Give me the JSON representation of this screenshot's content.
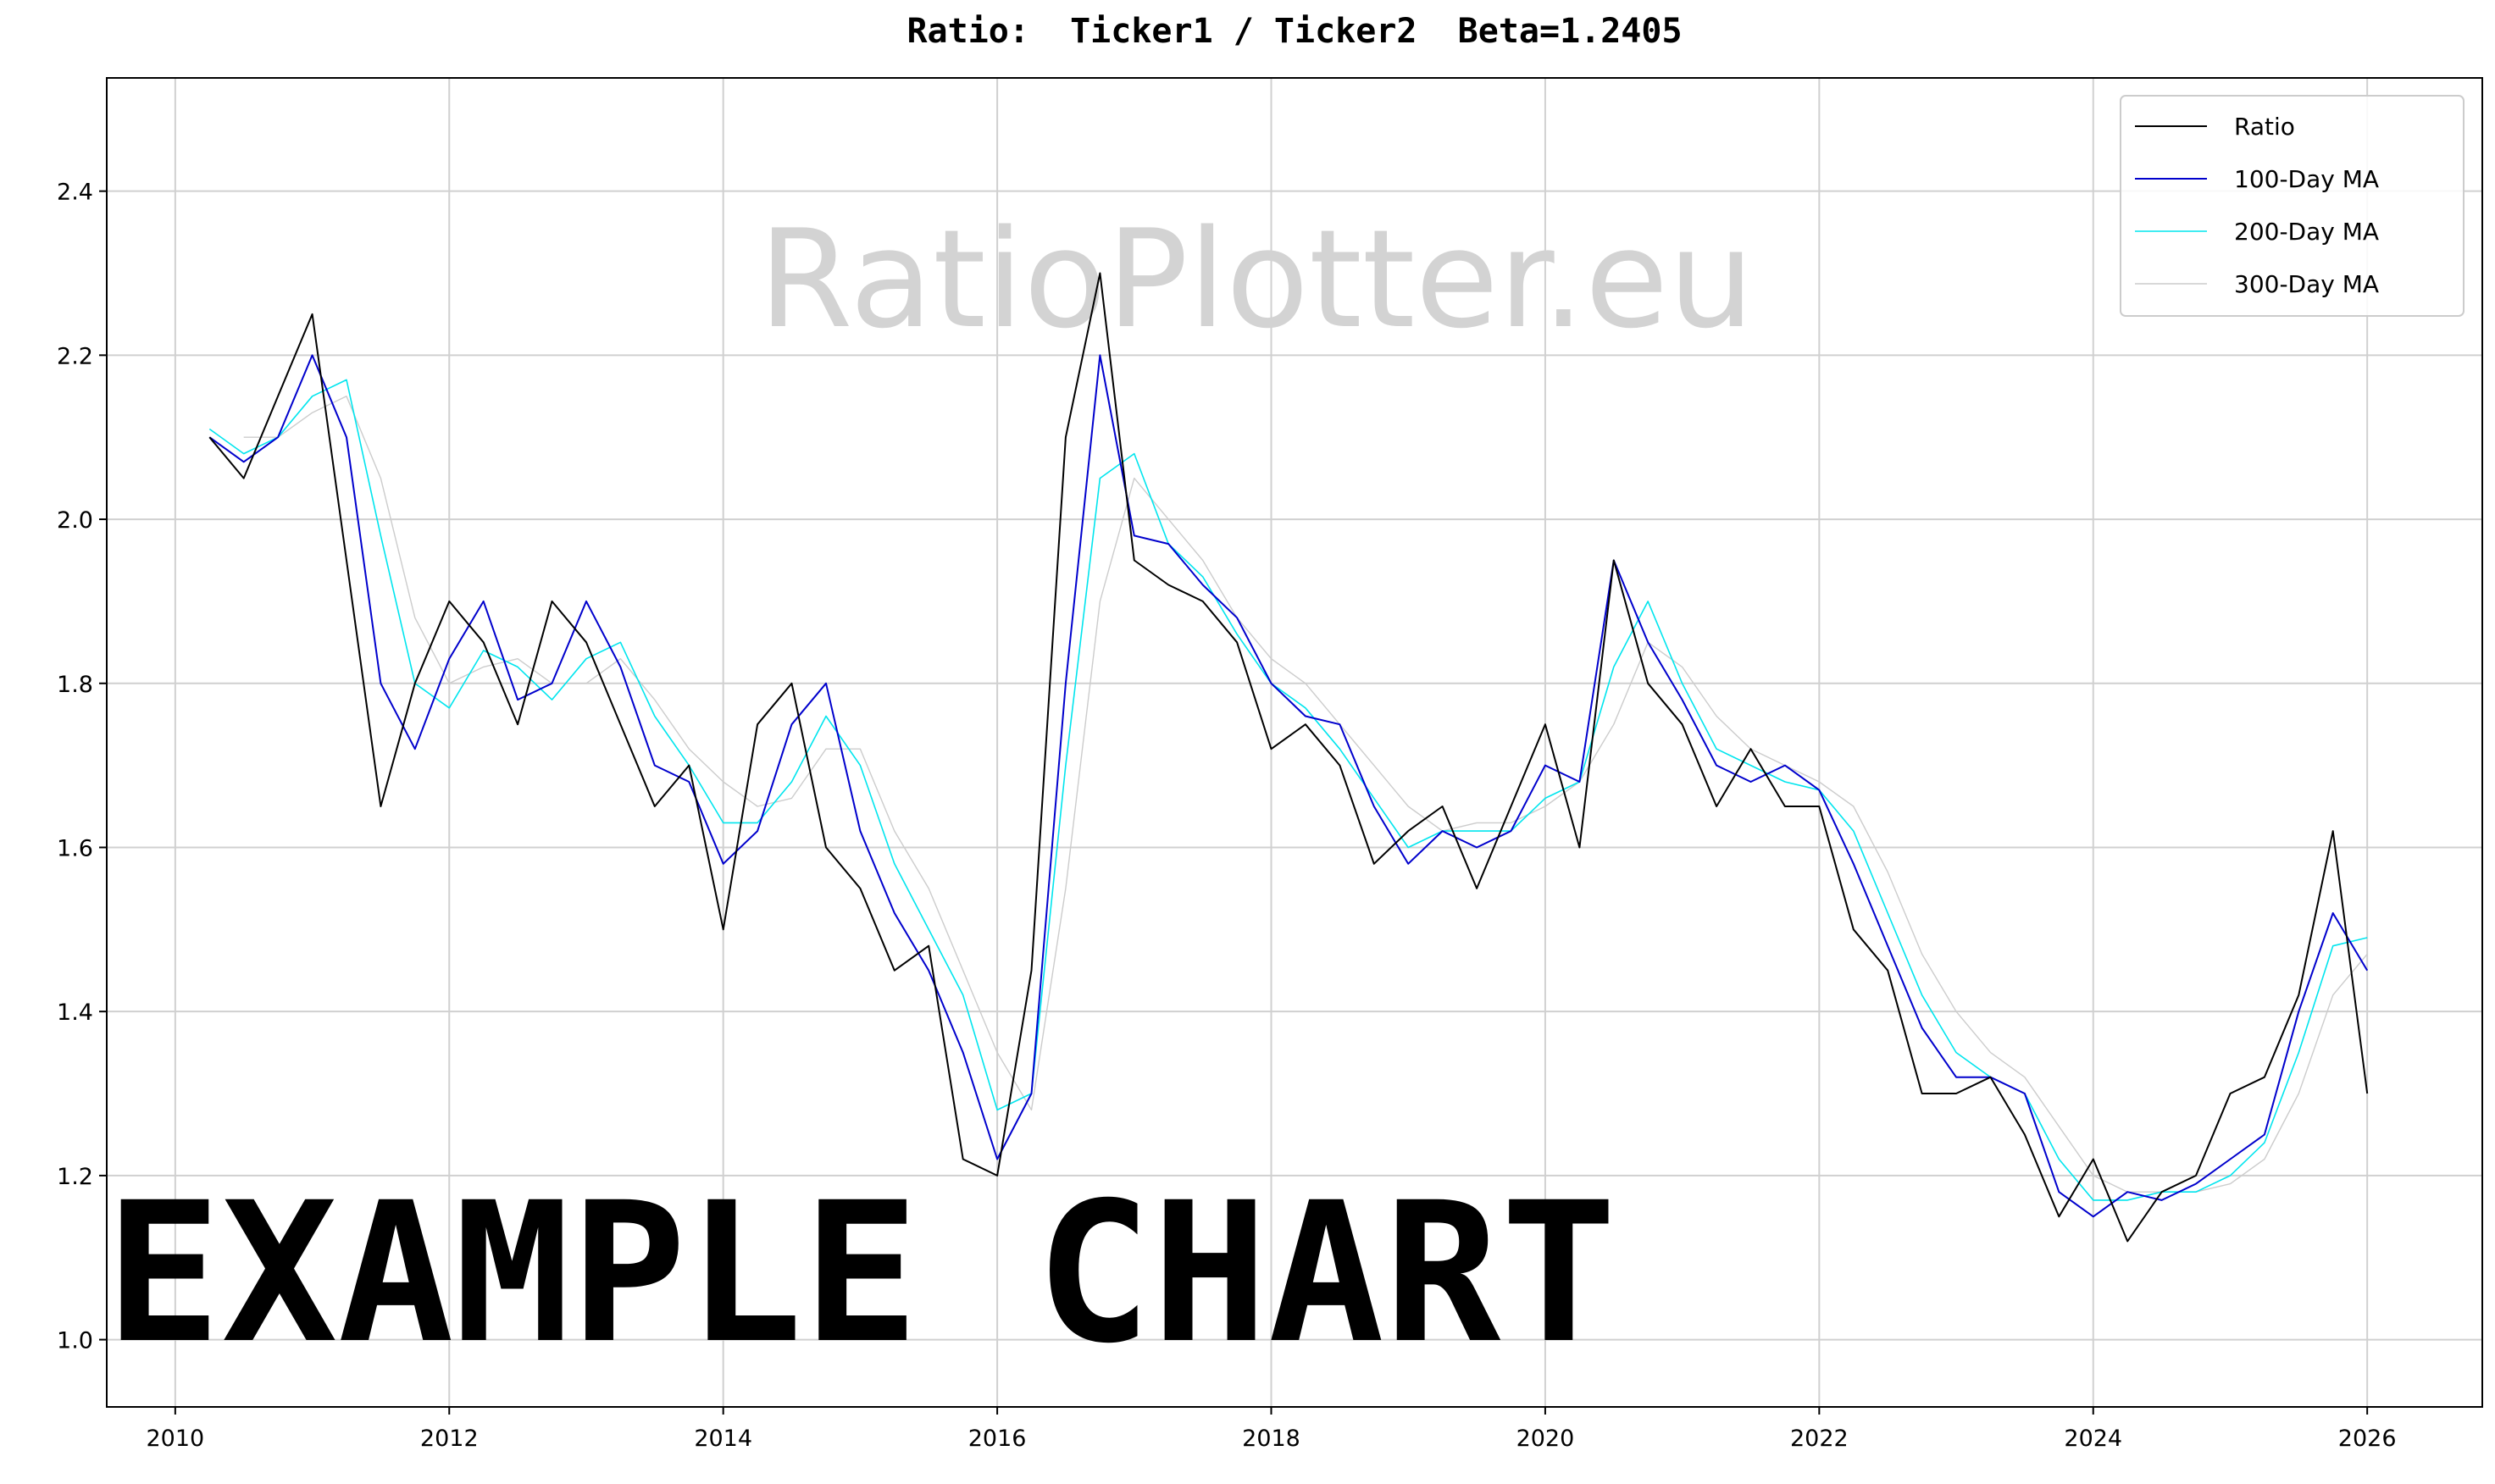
{
  "chart_data": {
    "type": "line",
    "title": "Ratio:  Ticker1 / Ticker2  Beta=1.2405",
    "annotations": [
      "RatioPlotter.eu",
      "EXAMPLE CHART"
    ],
    "x": [
      2010.25,
      2010.5,
      2010.75,
      2011.0,
      2011.25,
      2011.5,
      2011.75,
      2012.0,
      2012.25,
      2012.5,
      2012.75,
      2013.0,
      2013.25,
      2013.5,
      2013.75,
      2014.0,
      2014.25,
      2014.5,
      2014.75,
      2015.0,
      2015.25,
      2015.5,
      2015.75,
      2016.0,
      2016.25,
      2016.5,
      2016.75,
      2017.0,
      2017.25,
      2017.5,
      2017.75,
      2018.0,
      2018.25,
      2018.5,
      2018.75,
      2019.0,
      2019.25,
      2019.5,
      2019.75,
      2020.0,
      2020.25,
      2020.5,
      2020.75,
      2021.0,
      2021.25,
      2021.5,
      2021.75,
      2022.0,
      2022.25,
      2022.5,
      2022.75,
      2023.0,
      2023.25,
      2023.5,
      2023.75,
      2024.0,
      2024.25,
      2024.5,
      2024.75,
      2025.0,
      2025.25,
      2025.5,
      2025.75,
      2026.0
    ],
    "series": [
      {
        "name": "Ratio",
        "color": "#000000",
        "width": 2,
        "values": [
          2.1,
          2.05,
          2.15,
          2.25,
          1.95,
          1.65,
          1.8,
          1.9,
          1.85,
          1.75,
          1.9,
          1.85,
          1.75,
          1.65,
          1.7,
          1.5,
          1.75,
          1.8,
          1.6,
          1.55,
          1.45,
          1.48,
          1.22,
          1.2,
          1.45,
          2.1,
          2.3,
          1.95,
          1.92,
          1.9,
          1.85,
          1.72,
          1.75,
          1.7,
          1.58,
          1.62,
          1.65,
          1.55,
          1.65,
          1.75,
          1.6,
          1.95,
          1.8,
          1.75,
          1.65,
          1.72,
          1.65,
          1.65,
          1.5,
          1.45,
          1.3,
          1.3,
          1.32,
          1.25,
          1.15,
          1.22,
          1.12,
          1.18,
          1.2,
          1.3,
          1.32,
          1.42,
          1.62,
          1.3
        ]
      },
      {
        "name": "100-Day MA",
        "color": "#0000cc",
        "width": 2,
        "values": [
          2.1,
          2.07,
          2.1,
          2.2,
          2.1,
          1.8,
          1.72,
          1.83,
          1.9,
          1.78,
          1.8,
          1.9,
          1.82,
          1.7,
          1.68,
          1.58,
          1.62,
          1.75,
          1.8,
          1.62,
          1.52,
          1.45,
          1.35,
          1.22,
          1.3,
          1.8,
          2.2,
          1.98,
          1.97,
          1.92,
          1.88,
          1.8,
          1.76,
          1.75,
          1.65,
          1.58,
          1.62,
          1.6,
          1.62,
          1.7,
          1.68,
          1.95,
          1.85,
          1.78,
          1.7,
          1.68,
          1.7,
          1.67,
          1.58,
          1.48,
          1.38,
          1.32,
          1.32,
          1.3,
          1.18,
          1.15,
          1.18,
          1.17,
          1.19,
          1.22,
          1.25,
          1.4,
          1.52,
          1.45
        ]
      },
      {
        "name": "200-Day MA",
        "color": "#00e5ee",
        "width": 1.6,
        "values": [
          2.11,
          2.08,
          2.1,
          2.15,
          2.17,
          1.98,
          1.8,
          1.77,
          1.84,
          1.82,
          1.78,
          1.83,
          1.85,
          1.76,
          1.7,
          1.63,
          1.63,
          1.68,
          1.76,
          1.7,
          1.58,
          1.5,
          1.42,
          1.28,
          1.3,
          1.7,
          2.05,
          2.08,
          1.97,
          1.93,
          1.86,
          1.8,
          1.77,
          1.72,
          1.66,
          1.6,
          1.62,
          1.62,
          1.62,
          1.66,
          1.68,
          1.82,
          1.9,
          1.8,
          1.72,
          1.7,
          1.68,
          1.67,
          1.62,
          1.52,
          1.42,
          1.35,
          1.32,
          1.3,
          1.22,
          1.17,
          1.17,
          1.18,
          1.18,
          1.2,
          1.24,
          1.35,
          1.48,
          1.49
        ]
      },
      {
        "name": "300-Day MA",
        "color": "#cccccc",
        "width": 1.4,
        "values": [
          null,
          2.1,
          2.1,
          2.13,
          2.15,
          2.05,
          1.88,
          1.8,
          1.82,
          1.83,
          1.8,
          1.8,
          1.83,
          1.78,
          1.72,
          1.68,
          1.65,
          1.66,
          1.72,
          1.72,
          1.62,
          1.55,
          1.45,
          1.35,
          1.28,
          1.55,
          1.9,
          2.05,
          2.0,
          1.95,
          1.88,
          1.83,
          1.8,
          1.75,
          1.7,
          1.65,
          1.62,
          1.63,
          1.63,
          1.65,
          1.68,
          1.75,
          1.85,
          1.82,
          1.76,
          1.72,
          1.7,
          1.68,
          1.65,
          1.57,
          1.47,
          1.4,
          1.35,
          1.32,
          1.26,
          1.2,
          1.18,
          1.18,
          1.18,
          1.19,
          1.22,
          1.3,
          1.42,
          1.47
        ]
      }
    ],
    "xlim": [
      2009.5,
      2026.84
    ],
    "ylim": [
      0.918,
      2.538
    ],
    "xticks": [
      2010,
      2012,
      2014,
      2016,
      2018,
      2020,
      2022,
      2024,
      2026
    ],
    "yticks": [
      {
        "value": 1.0,
        "label": "1.0"
      },
      {
        "value": 1.2,
        "label": "1.2"
      },
      {
        "value": 1.4,
        "label": "1.4"
      },
      {
        "value": 1.6,
        "label": "1.6"
      },
      {
        "value": 1.8,
        "label": "1.8"
      },
      {
        "value": 2.0,
        "label": "2.0"
      },
      {
        "value": 2.2,
        "label": "2.2"
      },
      {
        "value": 2.4,
        "label": "2.4"
      }
    ],
    "grid": true,
    "legend": "upper right"
  }
}
